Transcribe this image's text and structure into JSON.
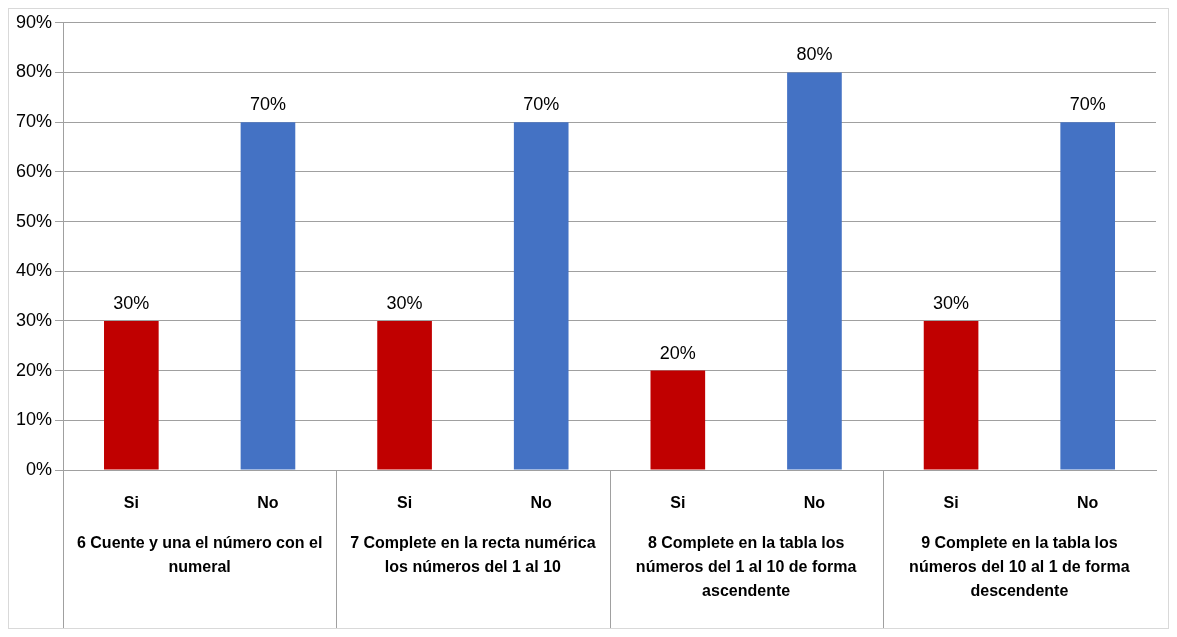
{
  "chart_data": {
    "type": "bar",
    "categories": [
      "6 Cuente y una el número con el numeral",
      "7 Complete en la recta numérica los números del 1 al 10",
      "8 Complete en la tabla los números del 1 al 10 de forma ascendente",
      "9 Complete en la tabla los números del 10 al 1 de forma descendente"
    ],
    "series": [
      {
        "name": "Si",
        "color": "#c00000",
        "values": [
          30,
          30,
          20,
          30
        ],
        "value_labels": [
          "30%",
          "30%",
          "20%",
          "30%"
        ]
      },
      {
        "name": "No",
        "color": "#4472c4",
        "values": [
          70,
          70,
          80,
          70
        ],
        "value_labels": [
          "70%",
          "70%",
          "80%",
          "70%"
        ]
      }
    ],
    "ylim": [
      0,
      90
    ],
    "yticks": [
      {
        "value": 0,
        "label": "0%"
      },
      {
        "value": 10,
        "label": "10%"
      },
      {
        "value": 20,
        "label": "20%"
      },
      {
        "value": 30,
        "label": "30%"
      },
      {
        "value": 40,
        "label": "40%"
      },
      {
        "value": 50,
        "label": "50%"
      },
      {
        "value": 60,
        "label": "60%"
      },
      {
        "value": 70,
        "label": "70%"
      },
      {
        "value": 80,
        "label": "80%"
      },
      {
        "value": 90,
        "label": "90%"
      }
    ],
    "grid": "y",
    "legend": false
  }
}
